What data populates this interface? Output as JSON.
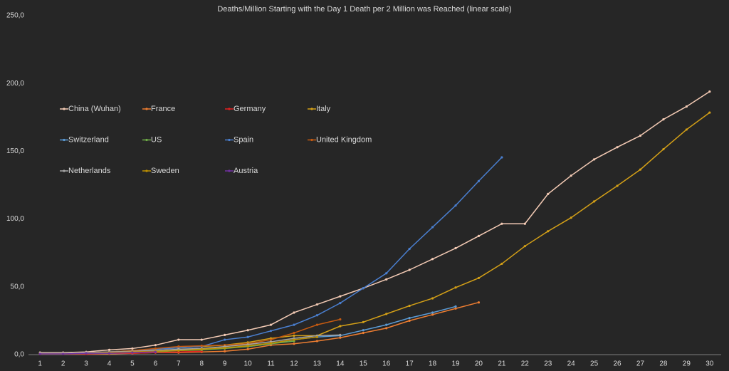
{
  "chart_data": {
    "type": "line",
    "title": "Deaths/Million Starting with the Day 1 Death per 2 Million was Reached (linear scale)",
    "categories": [
      "1",
      "2",
      "3",
      "4",
      "5",
      "6",
      "7",
      "8",
      "9",
      "10",
      "11",
      "12",
      "13",
      "14",
      "15",
      "16",
      "17",
      "18",
      "19",
      "20",
      "21",
      "22",
      "23",
      "24",
      "25",
      "26",
      "27",
      "28",
      "29",
      "30"
    ],
    "ylim": [
      0,
      250
    ],
    "yticks": [
      {
        "value": 0,
        "label": "0,0"
      },
      {
        "value": 50,
        "label": "50,0"
      },
      {
        "value": 100,
        "label": "100,0"
      },
      {
        "value": 150,
        "label": "150,0"
      },
      {
        "value": 200,
        "label": "200,0"
      },
      {
        "value": 250,
        "label": "250,0"
      }
    ],
    "grid": false,
    "legend": "upper left",
    "series": [
      {
        "name": "China (Wuhan)",
        "color": "#f4cbb5",
        "values": [
          1.5,
          1.5,
          2,
          3.5,
          4.5,
          7,
          11,
          11,
          14.5,
          18,
          22,
          31,
          37,
          43,
          49,
          55.5,
          62.5,
          70.5,
          78.5,
          87.5,
          96.5,
          96.5,
          118.5,
          132,
          144,
          153,
          161.5,
          173.5,
          183,
          194
        ]
      },
      {
        "name": "France",
        "color": "#ed7d31",
        "values": [
          0.5,
          0.5,
          0.5,
          0.5,
          1,
          1.5,
          1.5,
          2,
          2.5,
          4,
          7,
          8,
          10,
          12.5,
          16,
          19.5,
          25,
          29.5,
          34,
          38.5,
          null,
          null,
          null,
          null,
          null,
          null,
          null,
          null,
          null,
          null
        ]
      },
      {
        "name": "Germany",
        "color": "#e02020",
        "values": [
          0.5,
          0.5,
          0.5,
          1,
          1,
          1.5,
          2,
          2.5,
          null,
          null,
          null,
          null,
          null,
          null,
          null,
          null,
          null,
          null,
          null,
          null,
          null,
          null,
          null,
          null,
          null,
          null,
          null,
          null,
          null,
          null
        ]
      },
      {
        "name": "Italy",
        "color": "#d4a017",
        "values": [
          1,
          1,
          1.5,
          2,
          3,
          4,
          5,
          6,
          7,
          9,
          12,
          14,
          14,
          21,
          24,
          30,
          36,
          41.5,
          49.5,
          56.5,
          67,
          80,
          91,
          101,
          113,
          124.5,
          136.5,
          151.5,
          166,
          178.5
        ]
      },
      {
        "name": "Switzerland",
        "color": "#5b9bd5",
        "values": [
          1,
          1,
          1.5,
          2,
          2.5,
          3,
          3.5,
          4,
          5,
          6,
          8,
          11,
          13,
          14,
          18,
          22,
          27,
          31,
          35.5,
          null,
          null,
          null,
          null,
          null,
          null,
          null,
          null,
          null,
          null,
          null
        ]
      },
      {
        "name": "US",
        "color": "#70ad47",
        "values": [
          0.5,
          0.5,
          1,
          1,
          1.5,
          2,
          3,
          3.5,
          4.5,
          6,
          8,
          10,
          null,
          null,
          null,
          null,
          null,
          null,
          null,
          null,
          null,
          null,
          null,
          null,
          null,
          null,
          null,
          null,
          null,
          null
        ]
      },
      {
        "name": "Spain",
        "color": "#4a7fd0",
        "values": [
          1,
          1,
          1.5,
          2,
          3,
          4,
          5,
          6,
          11,
          13,
          17.5,
          22,
          29,
          38,
          49,
          60,
          78,
          94,
          110,
          128,
          145.5,
          null,
          null,
          null,
          null,
          null,
          null,
          null,
          null,
          null
        ]
      },
      {
        "name": "United Kingdom",
        "color": "#c55a11",
        "values": [
          1,
          1,
          1.5,
          2,
          3,
          4.5,
          6,
          6.5,
          7,
          8,
          11,
          16,
          22,
          26,
          null,
          null,
          null,
          null,
          null,
          null,
          null,
          null,
          null,
          null,
          null,
          null,
          null,
          null,
          null,
          null
        ]
      },
      {
        "name": "Netherlands",
        "color": "#a5a5a5",
        "values": [
          1,
          1,
          1.5,
          2,
          2.5,
          3,
          4,
          4.5,
          6,
          7.5,
          9.5,
          12,
          14,
          14.5,
          null,
          null,
          null,
          null,
          null,
          null,
          null,
          null,
          null,
          null,
          null,
          null,
          null,
          null,
          null,
          null
        ]
      },
      {
        "name": "Sweden",
        "color": "#bf9000",
        "values": [
          0.5,
          0.5,
          1,
          1.5,
          2,
          2.5,
          3,
          4,
          5,
          6.5,
          8.5,
          11,
          13,
          null,
          null,
          null,
          null,
          null,
          null,
          null,
          null,
          null,
          null,
          null,
          null,
          null,
          null,
          null,
          null,
          null
        ]
      },
      {
        "name": "Austria",
        "color": "#7030a0",
        "values": [
          0.5,
          0.5,
          1,
          1,
          1.5,
          2,
          null,
          null,
          null,
          null,
          null,
          null,
          null,
          null,
          null,
          null,
          null,
          null,
          null,
          null,
          null,
          null,
          null,
          null,
          null,
          null,
          null,
          null,
          null,
          null
        ]
      }
    ]
  }
}
